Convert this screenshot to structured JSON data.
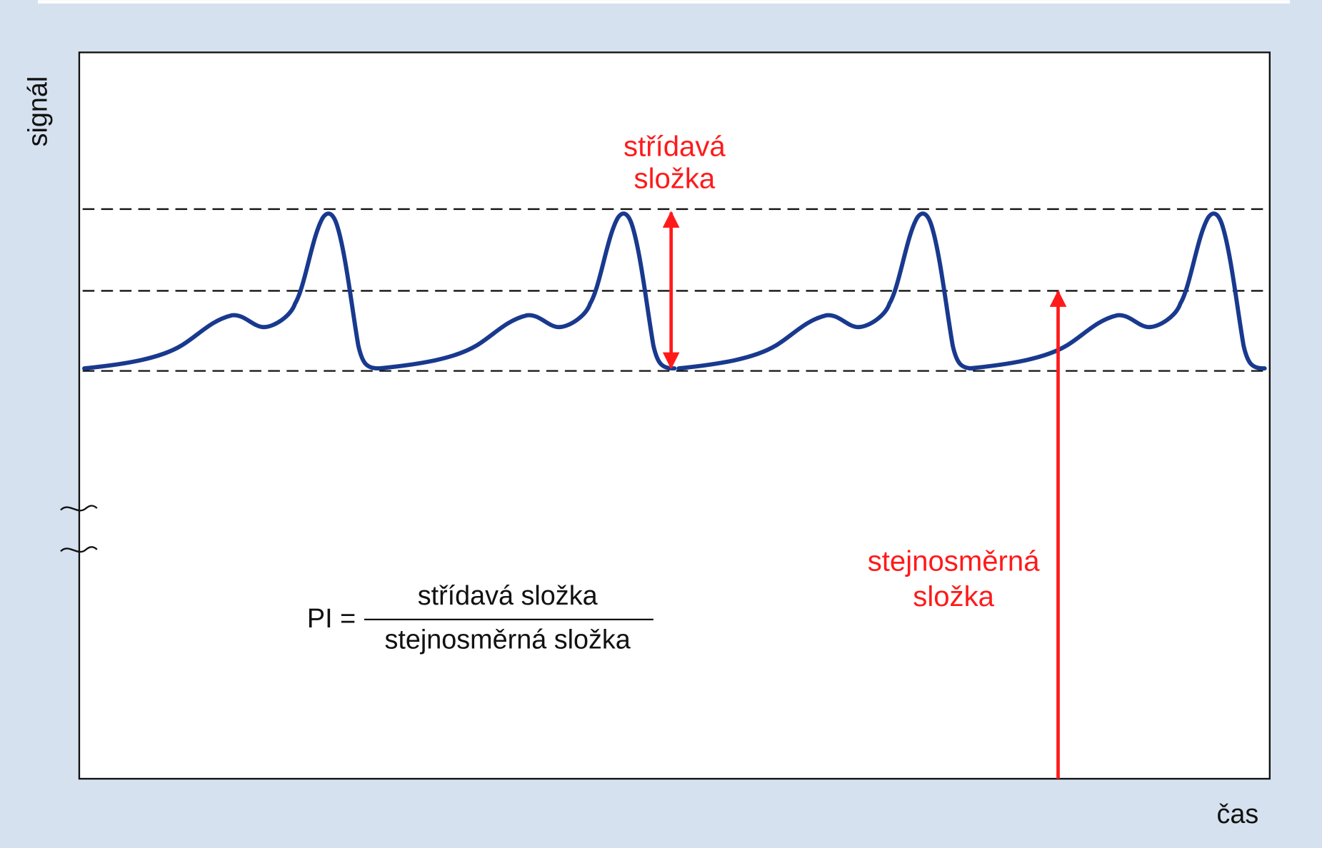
{
  "axes": {
    "y_label": "signál",
    "x_label": "čas"
  },
  "annotations": {
    "ac_component": {
      "lines": [
        "střídavá",
        "složka"
      ]
    },
    "dc_component": {
      "lines": [
        "stejnosměrná",
        "složka"
      ]
    }
  },
  "formula": {
    "lhs": "PI =",
    "numerator": "střídavá složka",
    "denominator": "stejnosměrná složka"
  }
}
